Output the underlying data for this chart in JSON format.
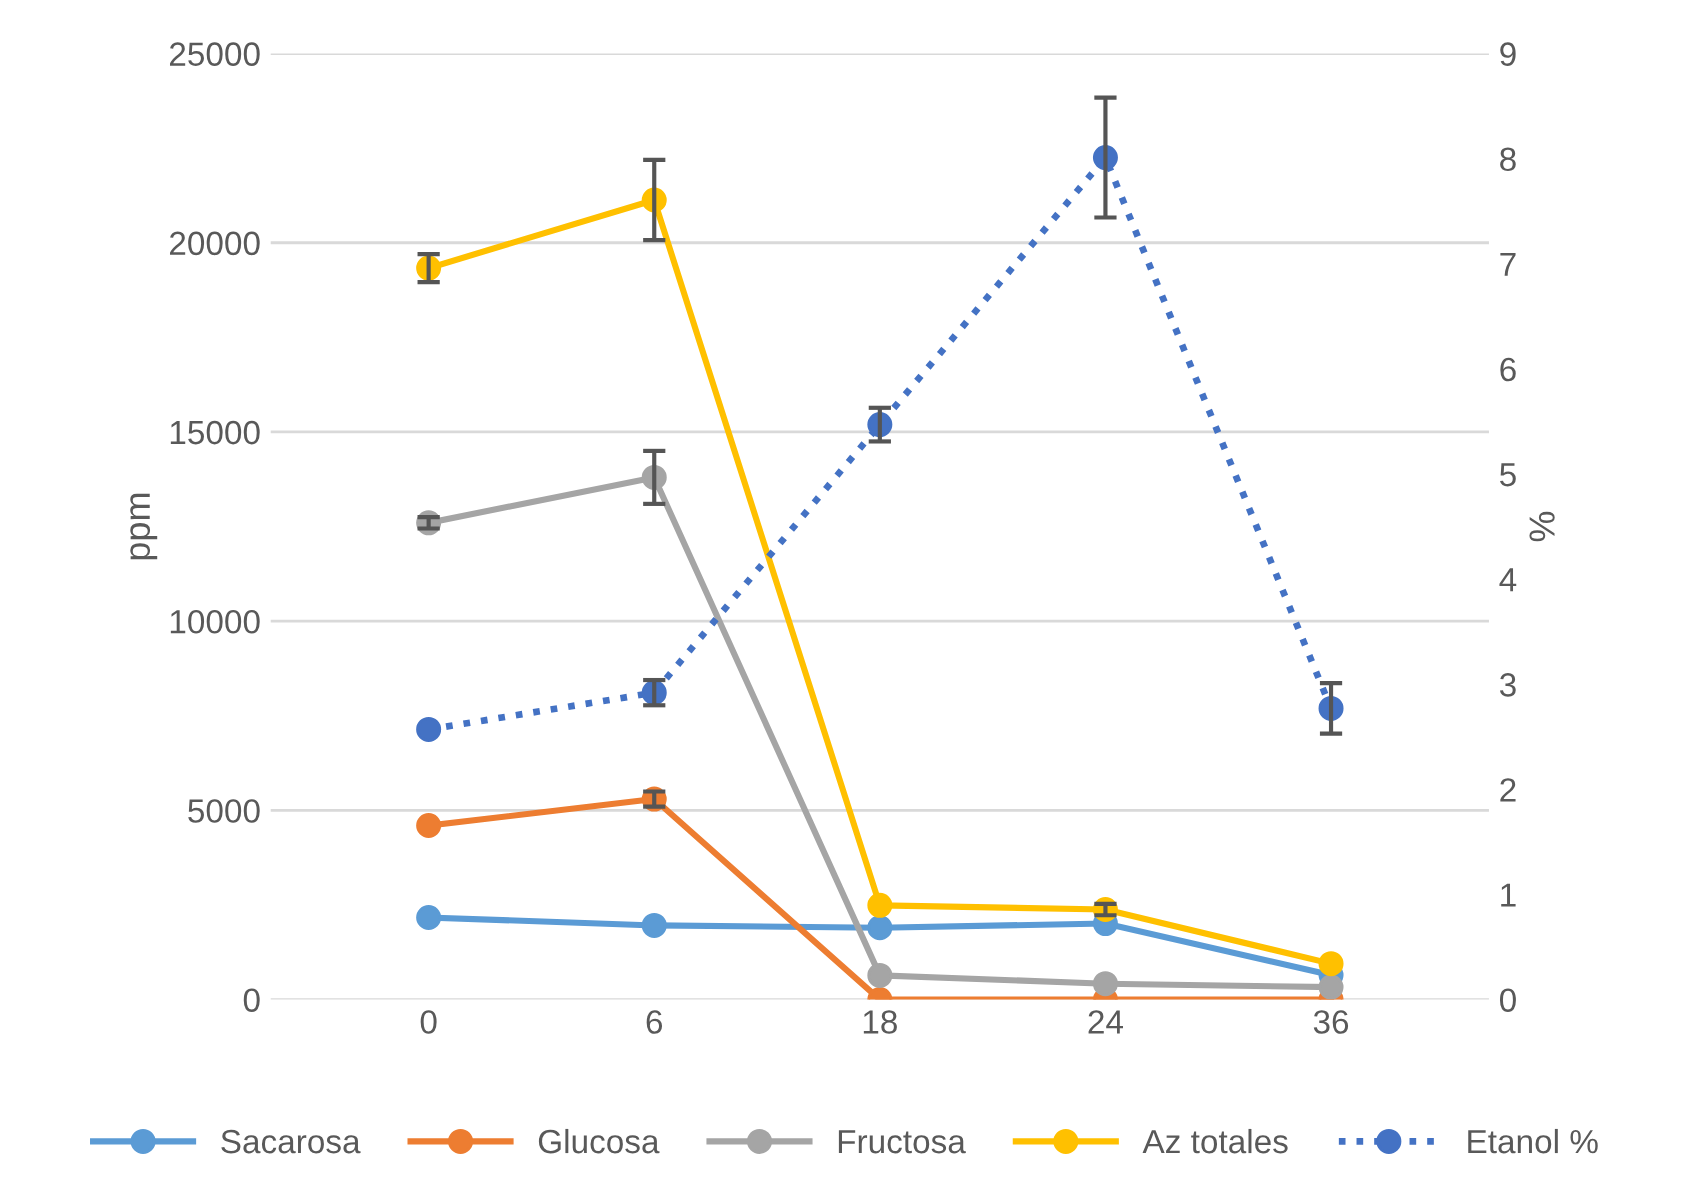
{
  "chart_data": {
    "type": "line",
    "categories": [
      "0",
      "6",
      "18",
      "24",
      "36"
    ],
    "ylabel": "ppm",
    "y2label": "%",
    "ylim": [
      0,
      25000
    ],
    "yticks": [
      0,
      5000,
      10000,
      15000,
      20000,
      25000
    ],
    "y2lim": [
      0,
      9
    ],
    "y2ticks": [
      0,
      1,
      2,
      3,
      4,
      5,
      6,
      7,
      8,
      9
    ],
    "grid": "y",
    "legend": "bottom",
    "marker": "circle",
    "series": [
      {
        "name": "Sacarosa",
        "color": "#5b9bd5",
        "values": [
          2170,
          1960,
          1900,
          2010,
          650
        ]
      },
      {
        "name": "Glucosa",
        "color": "#ed7d31",
        "values": [
          4600,
          5300,
          0,
          0,
          0
        ],
        "errors": [
          null,
          200,
          null,
          null,
          null
        ]
      },
      {
        "name": "Fructosa",
        "color": "#a5a5a5",
        "values": [
          12600,
          13800,
          640,
          420,
          330
        ],
        "errors": [
          150,
          700,
          null,
          null,
          null
        ]
      },
      {
        "name": "Az totales",
        "color": "#ffc000",
        "values": [
          19330,
          21130,
          2490,
          2380,
          950
        ],
        "errors": [
          370,
          1060,
          null,
          150,
          null
        ]
      },
      {
        "name": "Etanol %",
        "color": "#4472c4",
        "values": [
          2.57,
          2.92,
          5.47,
          8.01,
          2.77
        ],
        "errors": [
          null,
          0.12,
          0.16,
          0.57,
          0.24
        ],
        "axis": "y2",
        "line_style": "dotted"
      }
    ]
  }
}
